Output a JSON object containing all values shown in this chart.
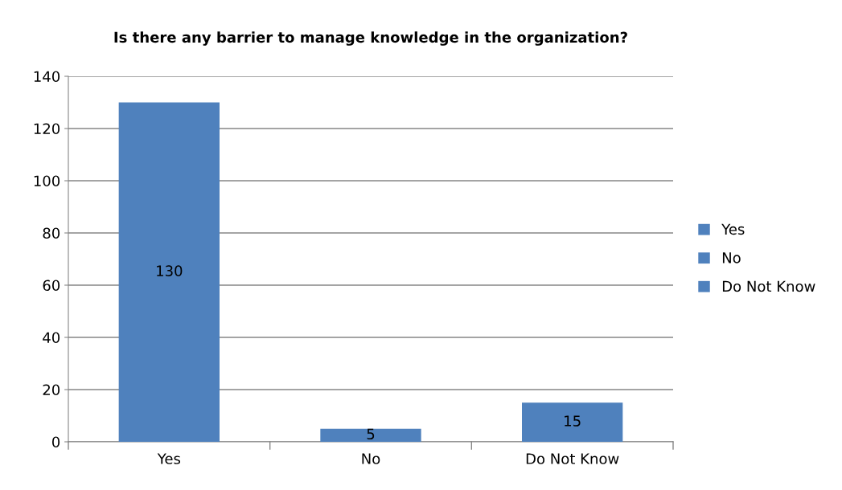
{
  "chart_data": {
    "type": "bar",
    "title": "Is there any barrier to manage knowledge in the organization?",
    "categories": [
      "Yes",
      "No",
      "Do Not Know"
    ],
    "series": [
      {
        "name": "Yes",
        "color": "#4f81bd",
        "values": [
          130,
          null,
          null
        ]
      },
      {
        "name": "No",
        "color": "#4f81bd",
        "values": [
          null,
          5,
          null
        ]
      },
      {
        "name": "Do Not Know",
        "color": "#4f81bd",
        "values": [
          null,
          null,
          15
        ]
      }
    ],
    "stacked": true,
    "ylim": [
      0,
      140
    ],
    "yticks": [
      0,
      20,
      40,
      60,
      80,
      100,
      120,
      140
    ],
    "grid": "y",
    "legend": "right",
    "data_labels": true
  }
}
